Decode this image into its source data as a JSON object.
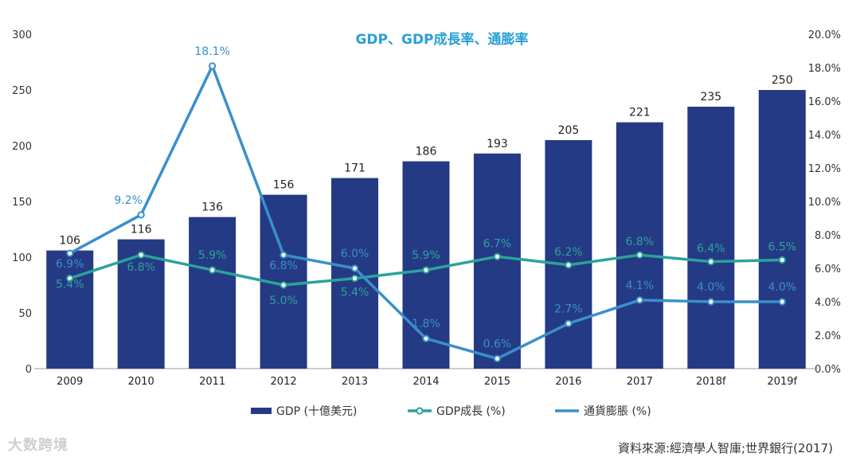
{
  "chart_data": {
    "type": "bar",
    "title": "GDP、GDP成長率、通膨率",
    "categories": [
      "2009",
      "2010",
      "2011",
      "2012",
      "2013",
      "2014",
      "2015",
      "2016",
      "2017",
      "2018f",
      "2019f"
    ],
    "series": [
      {
        "name": "GDP (十億美元)",
        "type": "bar",
        "axis": "left",
        "values": [
          106,
          116,
          136,
          156,
          171,
          186,
          193,
          205,
          221,
          235,
          250
        ],
        "color": "#253a85"
      },
      {
        "name": "GDP成長 (%)",
        "type": "line",
        "axis": "right",
        "values": [
          5.4,
          6.8,
          5.9,
          5.0,
          5.4,
          5.9,
          6.7,
          6.2,
          6.8,
          6.4,
          6.5
        ],
        "color": "#2ba39a"
      },
      {
        "name": "通貨膨脹 (%)",
        "type": "line",
        "axis": "right",
        "values": [
          6.9,
          9.2,
          18.1,
          6.8,
          6.0,
          1.8,
          0.6,
          2.7,
          4.1,
          4.0,
          4.0
        ],
        "color": "#3a8fcb"
      }
    ],
    "y_left": {
      "ylim": [
        0,
        300
      ],
      "ticks": [
        "0",
        "50",
        "100",
        "150",
        "200",
        "250",
        "300"
      ]
    },
    "y_right": {
      "ylim": [
        0,
        20
      ],
      "ticks": [
        "0.0%",
        "2.0%",
        "4.0%",
        "6.0%",
        "8.0%",
        "10.0%",
        "12.0%",
        "14.0%",
        "16.0%",
        "18.0%",
        "20.0%"
      ]
    },
    "legend": {
      "position": "bottom"
    },
    "grid": false
  },
  "source": "資料來源:經濟學人智庫;世界銀行(2017)",
  "watermark": "大数跨境",
  "colors": {
    "title": "#2a9fd6",
    "bar": "#253a85",
    "growth": "#2ba39a",
    "inflation": "#3a8fcb"
  }
}
